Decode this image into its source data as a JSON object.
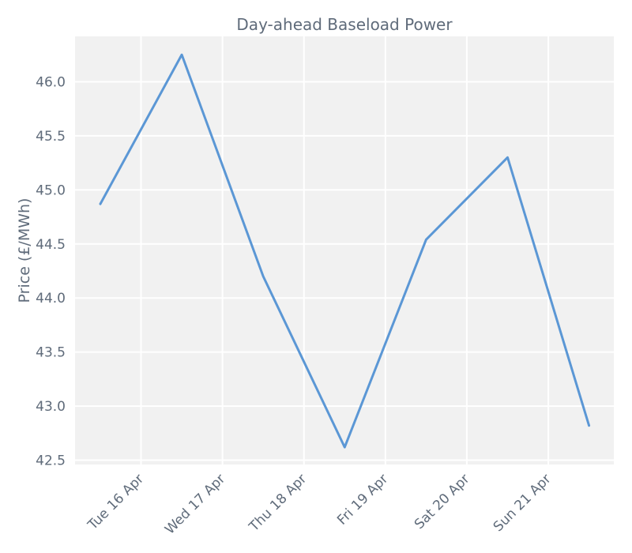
{
  "chart_data": {
    "type": "line",
    "title": "Day-ahead Baseload Power",
    "xlabel": "",
    "ylabel": "Price (£/MWh)",
    "x": [
      "2024-04-15",
      "2024-04-16",
      "2024-04-17",
      "2024-04-18",
      "2024-04-19",
      "2024-04-20",
      "2024-04-21"
    ],
    "x_tick_labels": [
      "Tue 16 Apr",
      "Wed 17 Apr",
      "Thu 18 Apr",
      "Fri 19 Apr",
      "Sat 20 Apr",
      "Sun 21 Apr"
    ],
    "y_tick_labels": [
      "42.5",
      "43.0",
      "43.5",
      "44.0",
      "44.5",
      "45.0",
      "45.5",
      "46.0"
    ],
    "series": [
      {
        "values": [
          44.87,
          46.25,
          44.2,
          42.62,
          44.54,
          45.3,
          42.82
        ],
        "color": "#5b97d5"
      }
    ],
    "grid": true,
    "plot_background": "#f1f1f1",
    "text_color": "#5f6b7a",
    "grid_color": "#ffffff"
  }
}
